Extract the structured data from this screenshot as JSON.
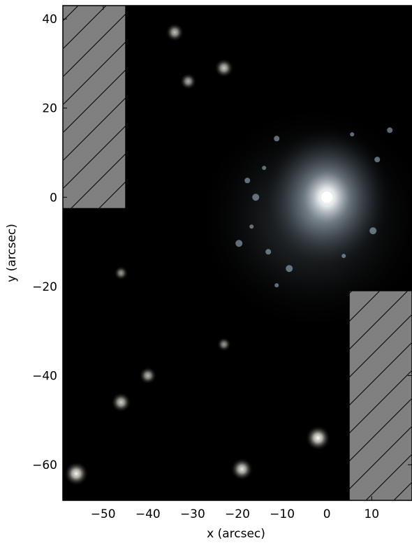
{
  "image": {
    "subject": "spiral galaxy",
    "background_color": "#000000",
    "masked_region_color": "#808080",
    "masked_region_hatch": "diagonal"
  },
  "axes": {
    "xlabel": "x (arcsec)",
    "ylabel": "y (arcsec)",
    "xlim": [
      -59,
      19
    ],
    "ylim": [
      -68,
      43
    ],
    "xticks": [
      -50,
      -40,
      -30,
      -20,
      -10,
      0,
      10
    ],
    "xtick_labels": [
      "−50",
      "−40",
      "−30",
      "−20",
      "−10",
      "0",
      "10"
    ],
    "yticks": [
      40,
      20,
      0,
      -20,
      -40,
      -60
    ],
    "ytick_labels": [
      "40",
      "20",
      "0",
      "−20",
      "−40",
      "−60"
    ]
  },
  "masked_regions": [
    {
      "x": [
        -59,
        -45
      ],
      "y": [
        -2.5,
        43
      ]
    },
    {
      "x": [
        5,
        19
      ],
      "y": [
        -21,
        -68
      ]
    }
  ],
  "point_sources": [
    {
      "x": -56,
      "y": -62,
      "brightness": 0.95
    },
    {
      "x": -46,
      "y": -46,
      "brightness": 0.7
    },
    {
      "x": -40,
      "y": -40,
      "brightness": 0.55
    },
    {
      "x": -34,
      "y": 37,
      "brightness": 0.6
    },
    {
      "x": -31,
      "y": 26,
      "brightness": 0.5
    },
    {
      "x": -23,
      "y": 29,
      "brightness": 0.65
    },
    {
      "x": -19,
      "y": -61,
      "brightness": 0.85
    },
    {
      "x": -23,
      "y": -33,
      "brightness": 0.35
    },
    {
      "x": -2,
      "y": -54,
      "brightness": 1.0
    },
    {
      "x": -46,
      "y": -17,
      "brightness": 0.35
    }
  ],
  "galaxy": {
    "x": 0,
    "y": 0
  }
}
